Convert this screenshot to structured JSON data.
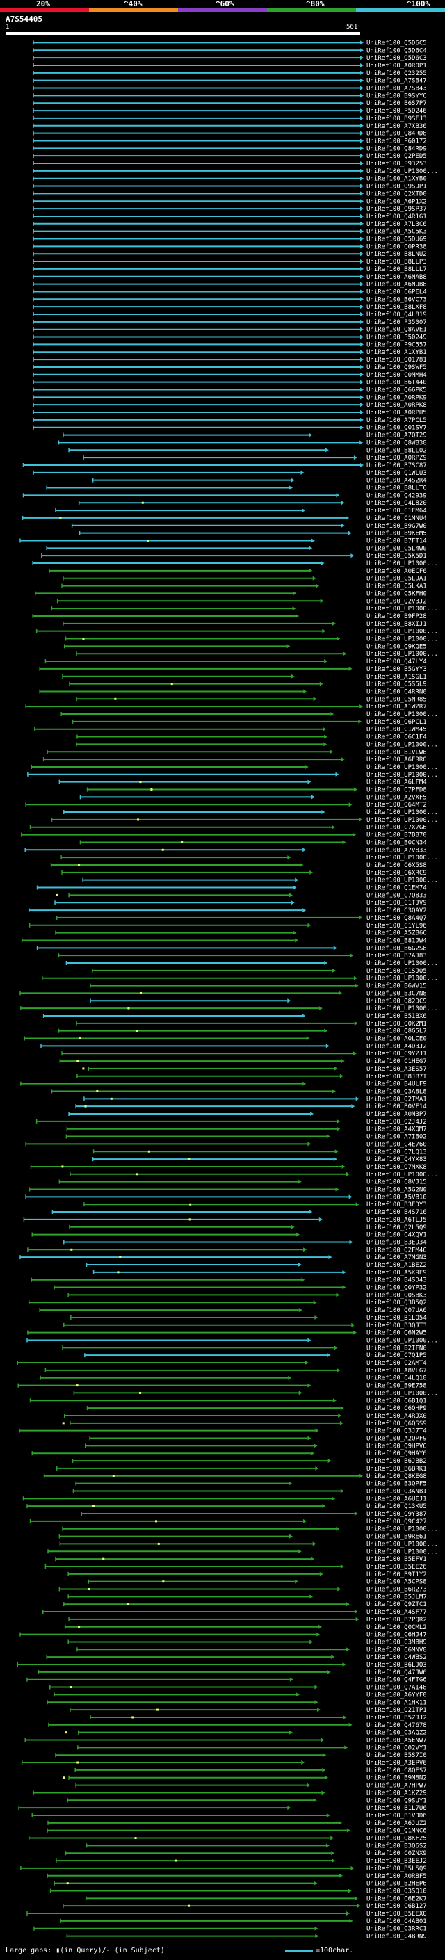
{
  "legend": {
    "labels": [
      "20%",
      "^40%",
      "^60%",
      "^80%",
      "^100%"
    ],
    "colors": [
      "#e8132b",
      "#f28c1e",
      "#8a3fc8",
      "#2ea22a",
      "#3fc1d8"
    ]
  },
  "query": {
    "id": "A7S54405"
  },
  "axis": {
    "start": "1",
    "end": "561",
    "max": 561
  },
  "chart_data": {
    "type": "alignment",
    "title": "A7S54405",
    "x_range": [
      1,
      561
    ],
    "subjects": [
      "UniRef100_Q5D6C5",
      "UniRef100_Q5D6C4",
      "UniRef100_Q5D6C3",
      "UniRef100_A0R0P1",
      "UniRef100_Q23255",
      "UniRef100_A7SB47",
      "UniRef100_A7SB43",
      "UniRef100_B9SYY6",
      "UniRef100_B6S7P7",
      "UniRef100_P5D246",
      "UniRef100_B9SFJ3",
      "UniRef100_A7XB36",
      "UniRef100_Q84RD8",
      "UniRef100_P60172",
      "UniRef100_Q84RD9",
      "UniRef100_Q2PED5",
      "UniRef100_P93253",
      "UniRef100_UP1000...",
      "UniRef100_A1XYB0",
      "UniRef100_Q9SDP1",
      "UniRef100_Q2XTD0",
      "UniRef100_A6P1X2",
      "UniRef100_Q9SP37",
      "UniRef100_Q4R1G1",
      "UniRef100_A7L3C6",
      "UniRef100_A5C5K3",
      "UniRef100_Q5DU69",
      "UniRef100_C0PR38",
      "UniRef100_B8LNU2",
      "UniRef100_B8LLP3",
      "UniRef100_B8LLL7",
      "UniRef100_A6NAB8",
      "UniRef100_A6NUB8",
      "UniRef100_C6PEL4",
      "UniRef100_B6VC73",
      "UniRef100_B8LXF8",
      "UniRef100_Q4L819",
      "UniRef100_P35007",
      "UniRef100_Q8AVE1",
      "UniRef100_P50249",
      "UniRef100_P9C557",
      "UniRef100_A1XYB1",
      "UniRef100_Q01781",
      "UniRef100_Q9SWF5",
      "UniRef100_C0MMH4",
      "UniRef100_B6T440",
      "UniRef100_Q66PK5",
      "UniRef100_A0RPK9",
      "UniRef100_A0RPK8",
      "UniRef100_A0RPU5",
      "UniRef100_A7PCL5",
      "UniRef100_Q01SV7",
      "UniRef100_A7QT29",
      "UniRef100_Q8WB38",
      "UniRef100_B8LL02",
      "UniRef100_A0RPZ9",
      "UniRef100_B7SC87",
      "UniRef100_Q1WLU3",
      "UniRef100_A4S2R4",
      "UniRef100_B8LLT6",
      "UniRef100_Q42939",
      "UniRef100_Q4L820",
      "UniRef100_C1EM64",
      "UniRef100_C1MNU4",
      "UniRef100_B9G7W0",
      "UniRef100_B9KEM5",
      "UniRef100_B7FT14",
      "UniRef100_C5L4W0",
      "UniRef100_C5K5D1",
      "UniRef100_UP1000...",
      "UniRef100_A0ECF6",
      "UniRef100_C5L9A1",
      "UniRef100_C5LKA1",
      "UniRef100_C5KFH0",
      "UniRef100_Q2V3J2",
      "UniRef100_UP1000...",
      "UniRef100_B9FP28",
      "UniRef100_B8XIJ1",
      "UniRef100_UP1000...",
      "UniRef100_UP1000...",
      "UniRef100_Q9KQE5",
      "UniRef100_UP1000...",
      "UniRef100_Q47LY4",
      "UniRef100_B5GYY3",
      "UniRef100_A1SGL1",
      "UniRef100_C5S5L9",
      "UniRef100_C4RRN0",
      "UniRef100_C5NR85",
      "UniRef100_A1WZR7",
      "UniRef100_UP1000...",
      "UniRef100_Q6PCL1",
      "UniRef100_C1WM45",
      "UniRef100_C6C1F4",
      "UniRef100_UP1000...",
      "UniRef100_B1VLW6",
      "UniRef100_A6ERR0",
      "UniRef100_UP1000...",
      "UniRef100_UP1000...",
      "UniRef100_A6LFM4",
      "UniRef100_C7PFD8",
      "UniRef100_A2VXF5",
      "UniRef100_Q64MT2",
      "UniRef100_UP1000...",
      "UniRef100_UP1000...",
      "UniRef100_C7X7G6",
      "UniRef100_B7BB70",
      "UniRef100_B0CN34",
      "UniRef100_A7V833",
      "UniRef100_UP1000...",
      "UniRef100_C6X5S8",
      "UniRef100_C6XRC9",
      "UniRef100_UP1000...",
      "UniRef100_Q1EM74",
      "UniRef100_C7Q833",
      "UniRef100_C1TJV9",
      "UniRef100_C3QAV2",
      "UniRef100_Q8A4Q7",
      "UniRef100_C1YL96",
      "UniRef100_A5ZB66",
      "UniRef100_B81JW4",
      "UniRef100_B6G2S8",
      "UniRef100_B7AJ83",
      "UniRef100_UP1000...",
      "UniRef100_C1SJQ5",
      "UniRef100_UP1000...",
      "UniRef100_B6WV15",
      "UniRef100_B3C7N8",
      "UniRef100_Q82DC9",
      "UniRef100_UP1000...",
      "UniRef100_B51BX6",
      "UniRef100_Q0K2M1",
      "UniRef100_Q8G5L7",
      "UniRef100_A0LCE0",
      "UniRef100_A4D3J2",
      "UniRef100_C9YZJ1",
      "UniRef100_C1HEG7",
      "UniRef100_A3ES57",
      "UniRef100_B8JB7T",
      "UniRef100_B4ULF9",
      "UniRef100_Q3A8L8",
      "UniRef100_Q2TMA1",
      "UniRef100_B0VF14",
      "UniRef100_A0M3P7",
      "UniRef100_Q2J4J2",
      "UniRef100_A4XQM7",
      "UniRef100_A7IB02",
      "UniRef100_C4E760",
      "UniRef100_C7LQ13",
      "UniRef100_Q4YX83",
      "UniRef100_Q7MXK8",
      "UniRef100_UP1000...",
      "UniRef100_C8VJ15",
      "UniRef100_A5G2N0",
      "UniRef100_A5VB10",
      "UniRef100_B3EDY3",
      "UniRef100_B4S716",
      "UniRef100_A6TLJ5",
      "UniRef100_Q2L5Q9",
      "UniRef100_C4XQV1",
      "UniRef100_B3ED34",
      "UniRef100_Q2FM46",
      "UniRef100_A7MGN3",
      "UniRef100_A1BEZ2",
      "UniRef100_A5K9E9",
      "UniRef100_B4SD43",
      "UniRef100_Q0YP32",
      "UniRef100_Q0SBK3",
      "UniRef100_Q3B5Q2",
      "UniRef100_Q07UA6",
      "UniRef100_B1LQ54",
      "UniRef100_B3QJT3",
      "UniRef100_Q6N2W5",
      "UniRef100_UP1000...",
      "UniRef100_B2IFN0",
      "UniRef100_C7Q1P5",
      "UniRef100_C2AMT4",
      "UniRef100_A8VLG7",
      "UniRef100_C4LQ18",
      "UniRef100_B9E758",
      "UniRef100_UP1000...",
      "UniRef100_C6B1Q1",
      "UniRef100_C6QHP9",
      "UniRef100_A4RJX0",
      "UniRef100_Q6QSS9",
      "UniRef100_Q3J7T4",
      "UniRef100_A2QPF9",
      "UniRef100_Q9HPV6",
      "UniRef100_Q9HAY6",
      "UniRef100_B6JBB2",
      "UniRef100_B6BRK1",
      "UniRef100_Q8KEG8",
      "UniRef100_B3QPF5",
      "UniRef100_Q3ANB1",
      "UniRef100_A6UEJ1",
      "UniRef100_Q13KU5",
      "UniRef100_Q9Y387",
      "UniRef100_Q9C427",
      "UniRef100_UP1000...",
      "UniRef100_B9RE61",
      "UniRef100_UP1000...",
      "UniRef100_UP1000...",
      "UniRef100_B5EFV1",
      "UniRef100_B5EE26",
      "UniRef100_B9T1Y2",
      "UniRef100_A5CPS8",
      "UniRef100_B6R273",
      "UniRef100_B5JLM7",
      "UniRef100_Q9ZTC1",
      "UniRef100_A4SF77",
      "UniRef100_B7PQR2",
      "UniRef100_Q0CML2",
      "UniRef100_C6HJ47",
      "UniRef100_C3MBH9",
      "UniRef100_C6MNV8",
      "UniRef100_C4WBS2",
      "UniRef100_B6LJQ3",
      "UniRef100_Q47JW6",
      "UniRef100_Q4FTG6",
      "UniRef100_Q7AI48",
      "UniRef100_A6YYF0",
      "UniRef100_A1HK11",
      "UniRef100_Q21TP1",
      "UniRef100_B5ZJJ2",
      "UniRef100_Q47678",
      "UniRef100_C3AQZ2",
      "UniRef100_A5ENW7",
      "UniRef100_Q02VY1",
      "UniRef100_B5S7I0",
      "UniRef100_A3EPV6",
      "UniRef100_C8QES7",
      "UniRef100_B9M8N2",
      "UniRef100_A7HPW7",
      "UniRef100_A1KZ29",
      "UniRef100_Q9SUY1",
      "UniRef100_B1L7U6",
      "UniRef100_B1VDD6",
      "UniRef100_A6JUZ2",
      "UniRef100_Q1MNC6",
      "UniRef100_Q8KF25",
      "UniRef100_B3Q6S2",
      "UniRef100_C0ZNX9",
      "UniRef100_B3EEJ2",
      "UniRef100_B5L5Q9",
      "UniRef100_A0R8F5",
      "UniRef100_B2HEP6",
      "UniRef100_Q3SQ10",
      "UniRef100_C6E2K7",
      "UniRef100_C6B127",
      "UniRef100_B5EEX0",
      "UniRef100_C4AB01",
      "UniRef100_C3RRC1",
      "UniRef100_C4BRN9"
    ]
  },
  "footer": {
    "gap_text": "Large gaps: ▮(in Query)/- (in Subject)",
    "key_text": "=100char."
  }
}
